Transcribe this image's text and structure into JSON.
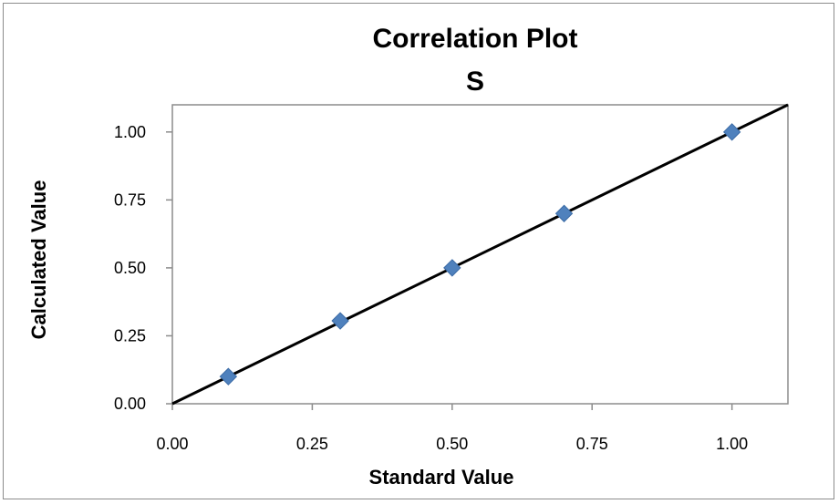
{
  "chart_data": {
    "type": "scatter",
    "title": "Correlation Plot",
    "subtitle": "S",
    "xlabel": "Standard Value",
    "ylabel": "Calculated Value",
    "xlim": [
      0,
      1.1
    ],
    "ylim": [
      0,
      1.1
    ],
    "x_ticks": [
      "0.00",
      "0.25",
      "0.50",
      "0.75",
      "1.00"
    ],
    "y_ticks": [
      "0.00",
      "0.25",
      "0.50",
      "0.75",
      "1.00"
    ],
    "grid": false,
    "legend": "none",
    "series": [
      {
        "marker": "diamond",
        "color": "#4f81bd",
        "points": [
          {
            "x": 0.1,
            "y": 0.1
          },
          {
            "x": 0.3,
            "y": 0.305
          },
          {
            "x": 0.5,
            "y": 0.5
          },
          {
            "x": 0.7,
            "y": 0.7
          },
          {
            "x": 1.0,
            "y": 1.0
          }
        ]
      }
    ],
    "reference_line": {
      "slope": 1,
      "intercept": 0,
      "color": "#000000"
    }
  }
}
